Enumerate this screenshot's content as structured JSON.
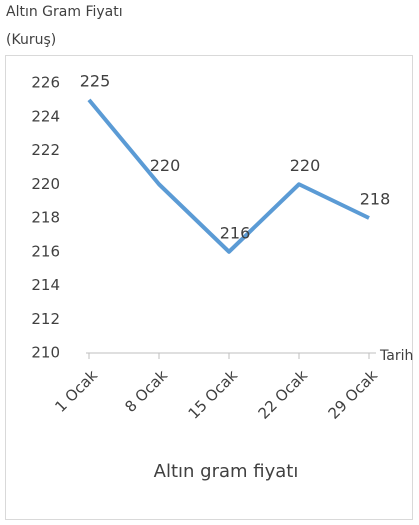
{
  "chart_data": {
    "type": "line",
    "y_axis_label_line1": "Altın Gram Fiyatı",
    "y_axis_label_line2": "(Kuruş)",
    "x_axis_label": "Tarih",
    "categories": [
      "1 Ocak",
      "8 Ocak",
      "15 Ocak",
      "22 Ocak",
      "29 Ocak"
    ],
    "series": [
      {
        "name": "Altın gram fiyatı",
        "color": "#5b9bd5",
        "values": [
          225,
          220,
          216,
          220,
          218
        ]
      }
    ],
    "ylim": [
      210,
      226
    ],
    "yticks": [
      210,
      212,
      214,
      216,
      218,
      220,
      222,
      224,
      226
    ],
    "grid": false,
    "legend": "bottom"
  }
}
